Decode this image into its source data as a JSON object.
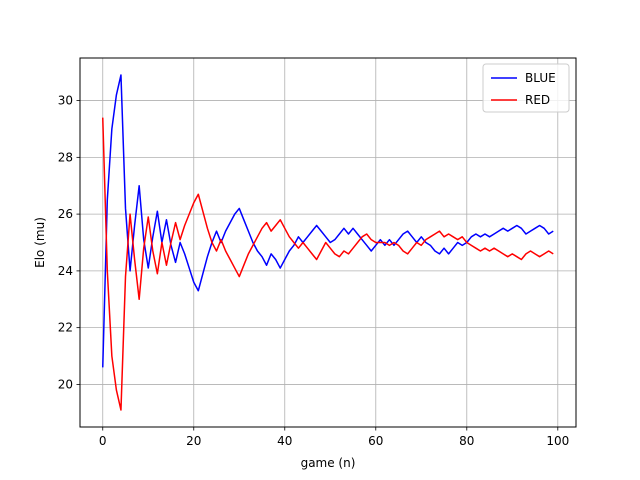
{
  "chart_data": {
    "type": "line",
    "title": "",
    "xlabel": "game (n)",
    "ylabel": "Elo (mu)",
    "xlim": [
      -5,
      104
    ],
    "ylim": [
      18.5,
      31.5
    ],
    "xticks": [
      0,
      20,
      40,
      60,
      80,
      100
    ],
    "yticks": [
      20,
      22,
      24,
      26,
      28,
      30
    ],
    "grid": true,
    "legend_position": "top-right",
    "series": [
      {
        "name": "BLUE",
        "color": "#0000ff",
        "x": [
          0,
          1,
          2,
          3,
          4,
          5,
          6,
          7,
          8,
          9,
          10,
          11,
          12,
          13,
          14,
          15,
          16,
          17,
          18,
          19,
          20,
          21,
          22,
          23,
          24,
          25,
          26,
          27,
          28,
          29,
          30,
          31,
          32,
          33,
          34,
          35,
          36,
          37,
          38,
          39,
          40,
          41,
          42,
          43,
          44,
          45,
          46,
          47,
          48,
          49,
          50,
          51,
          52,
          53,
          54,
          55,
          56,
          57,
          58,
          59,
          60,
          61,
          62,
          63,
          64,
          65,
          66,
          67,
          68,
          69,
          70,
          71,
          72,
          73,
          74,
          75,
          76,
          77,
          78,
          79,
          80,
          81,
          82,
          83,
          84,
          85,
          86,
          87,
          88,
          89,
          90,
          91,
          92,
          93,
          94,
          95,
          96,
          97,
          98,
          99
        ],
        "y": [
          20.6,
          26.5,
          29.0,
          30.2,
          30.9,
          26.2,
          24.0,
          25.6,
          27.0,
          25.1,
          24.1,
          25.2,
          26.1,
          25.0,
          25.8,
          24.9,
          24.3,
          25.0,
          24.6,
          24.1,
          23.6,
          23.3,
          23.9,
          24.5,
          25.0,
          25.4,
          25.0,
          25.4,
          25.7,
          26.0,
          26.2,
          25.8,
          25.4,
          25.0,
          24.7,
          24.5,
          24.2,
          24.6,
          24.4,
          24.1,
          24.4,
          24.7,
          24.9,
          25.2,
          25.0,
          25.2,
          25.4,
          25.6,
          25.4,
          25.2,
          25.0,
          25.1,
          25.3,
          25.5,
          25.3,
          25.5,
          25.3,
          25.1,
          24.9,
          24.7,
          24.9,
          25.1,
          24.9,
          25.1,
          24.9,
          25.1,
          25.3,
          25.4,
          25.2,
          25.0,
          25.2,
          25.0,
          24.9,
          24.7,
          24.6,
          24.8,
          24.6,
          24.8,
          25.0,
          24.9,
          25.0,
          25.2,
          25.3,
          25.2,
          25.3,
          25.2,
          25.3,
          25.4,
          25.5,
          25.4,
          25.5,
          25.6,
          25.5,
          25.3,
          25.4,
          25.5,
          25.6,
          25.5,
          25.3,
          25.4
        ]
      },
      {
        "name": "RED",
        "color": "#ff0000",
        "x": [
          0,
          1,
          2,
          3,
          4,
          5,
          6,
          7,
          8,
          9,
          10,
          11,
          12,
          13,
          14,
          15,
          16,
          17,
          18,
          19,
          20,
          21,
          22,
          23,
          24,
          25,
          26,
          27,
          28,
          29,
          30,
          31,
          32,
          33,
          34,
          35,
          36,
          37,
          38,
          39,
          40,
          41,
          42,
          43,
          44,
          45,
          46,
          47,
          48,
          49,
          50,
          51,
          52,
          53,
          54,
          55,
          56,
          57,
          58,
          59,
          60,
          61,
          62,
          63,
          64,
          65,
          66,
          67,
          68,
          69,
          70,
          71,
          72,
          73,
          74,
          75,
          76,
          77,
          78,
          79,
          80,
          81,
          82,
          83,
          84,
          85,
          86,
          87,
          88,
          89,
          90,
          91,
          92,
          93,
          94,
          95,
          96,
          97,
          98,
          99
        ],
        "y": [
          29.4,
          24.0,
          21.0,
          19.8,
          19.1,
          23.8,
          26.0,
          24.4,
          23.0,
          24.8,
          25.9,
          24.7,
          23.9,
          25.0,
          24.2,
          25.0,
          25.7,
          25.1,
          25.6,
          26.0,
          26.4,
          26.7,
          26.1,
          25.5,
          25.0,
          24.7,
          25.1,
          24.7,
          24.4,
          24.1,
          23.8,
          24.2,
          24.6,
          24.9,
          25.2,
          25.5,
          25.7,
          25.4,
          25.6,
          25.8,
          25.5,
          25.2,
          25.0,
          24.8,
          25.0,
          24.8,
          24.6,
          24.4,
          24.7,
          25.0,
          24.8,
          24.6,
          24.5,
          24.7,
          24.6,
          24.8,
          25.0,
          25.2,
          25.3,
          25.1,
          25.0,
          25.0,
          25.0,
          24.9,
          25.0,
          24.9,
          24.7,
          24.6,
          24.8,
          25.0,
          24.9,
          25.1,
          25.2,
          25.3,
          25.4,
          25.2,
          25.3,
          25.2,
          25.1,
          25.2,
          25.0,
          24.9,
          24.8,
          24.7,
          24.8,
          24.7,
          24.8,
          24.7,
          24.6,
          24.5,
          24.6,
          24.5,
          24.4,
          24.6,
          24.7,
          24.6,
          24.5,
          24.6,
          24.7,
          24.6
        ]
      }
    ]
  }
}
